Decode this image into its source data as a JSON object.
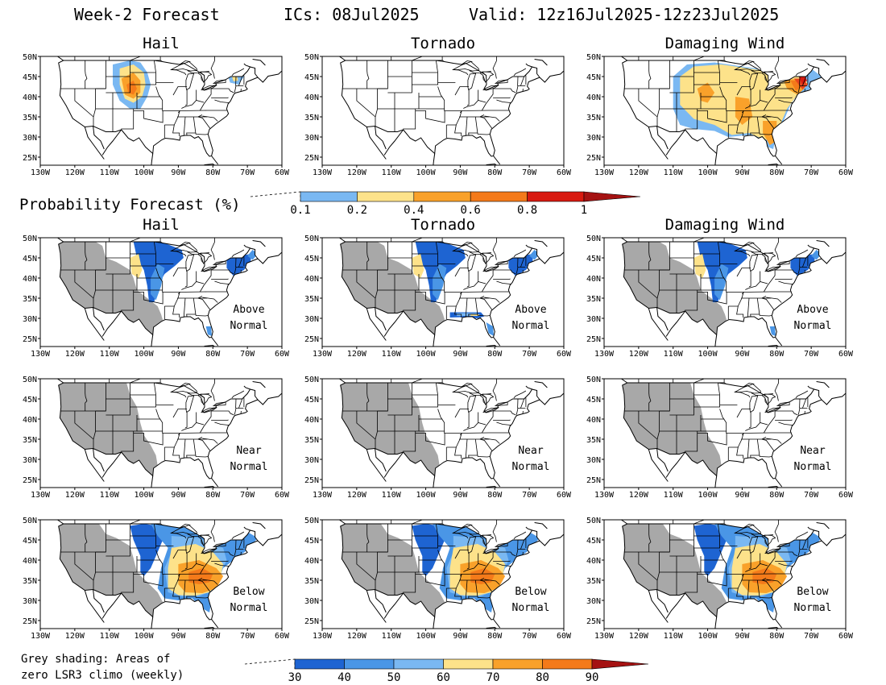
{
  "header": {
    "title": "Week-2 Forecast",
    "ics": "ICs: 08Jul2025",
    "valid": "Valid: 12z16Jul2025-12z23Jul2025"
  },
  "colors": {
    "grey": "#a8a8a8",
    "blue_dark": "#1e64d2",
    "blue_mid": "#4a96e6",
    "blue_light": "#7ab8f2",
    "yellow": "#fde28a",
    "orange_light": "#f9a12a",
    "orange": "#f47a1a",
    "red_orange": "#e8461e",
    "red": "#d81a10",
    "dark_red": "#a51212"
  },
  "axes": {
    "lon_labels": [
      "130W",
      "120W",
      "110W",
      "100W",
      "90W",
      "80W",
      "70W",
      "60W"
    ],
    "lat_labels": [
      "25N",
      "30N",
      "35N",
      "40N",
      "45N",
      "50N"
    ]
  },
  "columns": [
    "Hail",
    "Tornado",
    "Damaging Wind"
  ],
  "row_titles": [
    "Hail",
    "Tornado",
    "Damaging Wind"
  ],
  "prob_label": "Probability Forecast (%)",
  "prob_colorbar": {
    "labels": [
      "0.1",
      "0.2",
      "0.4",
      "0.6",
      "0.8",
      "1"
    ]
  },
  "anomaly_rows": [
    {
      "line1": "Above",
      "line2": "Normal"
    },
    {
      "line1": "Near",
      "line2": "Normal"
    },
    {
      "line1": "Below",
      "line2": "Normal"
    }
  ],
  "footnote": {
    "line1": "Grey shading: Areas of",
    "line2": "zero LSR3 climo (weekly)"
  },
  "pct_colorbar": {
    "labels": [
      "30",
      "40",
      "50",
      "60",
      "70",
      "80",
      "90"
    ]
  }
}
